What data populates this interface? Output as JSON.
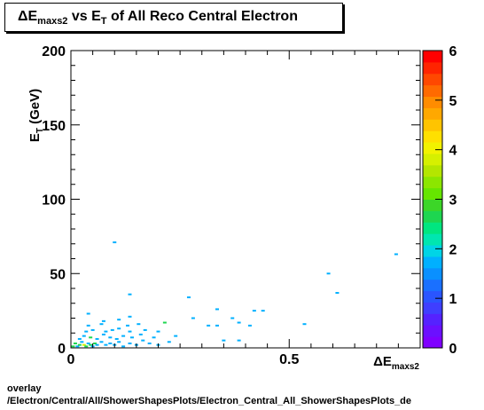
{
  "title": {
    "prefix": "ΔE",
    "sub1": "maxs2",
    "mid": " vs E",
    "sub2": "T",
    "suffix": " of All Reco Central Electron"
  },
  "footer": {
    "line1": "overlay",
    "line2": "/Electron/Central/All/ShowerShapesPlots/Electron_Central_All_ShowerShapesPlots_de"
  },
  "chart_data": {
    "type": "heatmap",
    "xlabel": {
      "main": "ΔE",
      "sub": "maxs2"
    },
    "ylabel": {
      "main": "E",
      "sub": "T",
      "tail": " (GeV)"
    },
    "xlim": [
      0,
      0.8
    ],
    "ylim": [
      0,
      200
    ],
    "x_ticks": [
      0,
      0.5
    ],
    "y_ticks": [
      0,
      50,
      100,
      150,
      200
    ],
    "z_range": [
      0,
      6
    ],
    "z_ticks": [
      0,
      1,
      2,
      3,
      4,
      5,
      6
    ],
    "palette": [
      "#7f00ff",
      "#6b10ff",
      "#5522ff",
      "#3f3fff",
      "#2a55ff",
      "#1a70ff",
      "#0a90ff",
      "#00b0ff",
      "#00d4e6",
      "#00e6b0",
      "#00e680",
      "#1ed650",
      "#3cd628",
      "#66e600",
      "#8ce600",
      "#b4e600",
      "#d6f000",
      "#f2f200",
      "#ffe000",
      "#ffc400",
      "#ffa800",
      "#ff8c00",
      "#ff6a00",
      "#ff4800",
      "#ff2400",
      "#ff0000"
    ],
    "points": [
      {
        "x": 0.005,
        "y": 1,
        "z": 2
      },
      {
        "x": 0.01,
        "y": 3,
        "z": 2
      },
      {
        "x": 0.015,
        "y": 1,
        "z": 1
      },
      {
        "x": 0.02,
        "y": 2,
        "z": 2
      },
      {
        "x": 0.025,
        "y": 4,
        "z": 1
      },
      {
        "x": 0.03,
        "y": 2,
        "z": 3
      },
      {
        "x": 0.035,
        "y": 1,
        "z": 2
      },
      {
        "x": 0.04,
        "y": 3,
        "z": 1
      },
      {
        "x": 0.045,
        "y": 2,
        "z": 2
      },
      {
        "x": 0.05,
        "y": 1,
        "z": 1
      },
      {
        "x": 0.055,
        "y": 3,
        "z": 2
      },
      {
        "x": 0.06,
        "y": 2,
        "z": 1
      },
      {
        "x": 0.07,
        "y": 4,
        "z": 1
      },
      {
        "x": 0.08,
        "y": 2,
        "z": 1
      },
      {
        "x": 0.09,
        "y": 3,
        "z": 1
      },
      {
        "x": 0.1,
        "y": 2,
        "z": 1
      },
      {
        "x": 0.11,
        "y": 4,
        "z": 1
      },
      {
        "x": 0.12,
        "y": 1,
        "z": 1
      },
      {
        "x": 0.135,
        "y": 3,
        "z": 1
      },
      {
        "x": 0.15,
        "y": 2,
        "z": 1
      },
      {
        "x": 0.165,
        "y": 5,
        "z": 1
      },
      {
        "x": 0.18,
        "y": 3,
        "z": 1
      },
      {
        "x": 0.2,
        "y": 2,
        "z": 1
      },
      {
        "x": 0.225,
        "y": 4,
        "z": 1
      },
      {
        "x": 0.02,
        "y": 6,
        "z": 1
      },
      {
        "x": 0.03,
        "y": 8,
        "z": 1
      },
      {
        "x": 0.045,
        "y": 7,
        "z": 2
      },
      {
        "x": 0.06,
        "y": 6,
        "z": 1
      },
      {
        "x": 0.075,
        "y": 9,
        "z": 1
      },
      {
        "x": 0.09,
        "y": 7,
        "z": 1
      },
      {
        "x": 0.105,
        "y": 6,
        "z": 1
      },
      {
        "x": 0.12,
        "y": 8,
        "z": 1
      },
      {
        "x": 0.14,
        "y": 7,
        "z": 1
      },
      {
        "x": 0.16,
        "y": 9,
        "z": 1
      },
      {
        "x": 0.19,
        "y": 7,
        "z": 1
      },
      {
        "x": 0.24,
        "y": 8,
        "z": 1
      },
      {
        "x": 0.035,
        "y": 11,
        "z": 1
      },
      {
        "x": 0.05,
        "y": 12,
        "z": 1
      },
      {
        "x": 0.08,
        "y": 11,
        "z": 1
      },
      {
        "x": 0.095,
        "y": 12,
        "z": 1
      },
      {
        "x": 0.11,
        "y": 13,
        "z": 1
      },
      {
        "x": 0.135,
        "y": 11,
        "z": 1
      },
      {
        "x": 0.17,
        "y": 12,
        "z": 1
      },
      {
        "x": 0.2,
        "y": 11,
        "z": 1
      },
      {
        "x": 0.04,
        "y": 15,
        "z": 1
      },
      {
        "x": 0.07,
        "y": 16,
        "z": 1
      },
      {
        "x": 0.13,
        "y": 15,
        "z": 1
      },
      {
        "x": 0.215,
        "y": 17,
        "z": 2
      },
      {
        "x": 0.155,
        "y": 16,
        "z": 1
      },
      {
        "x": 0.075,
        "y": 18,
        "z": 1
      },
      {
        "x": 0.11,
        "y": 19,
        "z": 1
      },
      {
        "x": 0.135,
        "y": 21,
        "z": 1
      },
      {
        "x": 0.04,
        "y": 23,
        "z": 1
      },
      {
        "x": 0.315,
        "y": 15,
        "z": 1
      },
      {
        "x": 0.335,
        "y": 15,
        "z": 1
      },
      {
        "x": 0.41,
        "y": 15,
        "z": 1
      },
      {
        "x": 0.385,
        "y": 17,
        "z": 1
      },
      {
        "x": 0.37,
        "y": 20,
        "z": 1
      },
      {
        "x": 0.28,
        "y": 20,
        "z": 1
      },
      {
        "x": 0.535,
        "y": 16,
        "z": 1
      },
      {
        "x": 0.35,
        "y": 5,
        "z": 1
      },
      {
        "x": 0.385,
        "y": 5,
        "z": 1
      },
      {
        "x": 0.42,
        "y": 25,
        "z": 1
      },
      {
        "x": 0.44,
        "y": 25,
        "z": 1
      },
      {
        "x": 0.335,
        "y": 26,
        "z": 1
      },
      {
        "x": 0.135,
        "y": 36,
        "z": 1
      },
      {
        "x": 0.27,
        "y": 34,
        "z": 1
      },
      {
        "x": 0.61,
        "y": 37,
        "z": 1
      },
      {
        "x": 0.59,
        "y": 50,
        "z": 1
      },
      {
        "x": 0.1,
        "y": 71,
        "z": 1
      },
      {
        "x": 0.745,
        "y": 63,
        "z": 1
      }
    ]
  }
}
